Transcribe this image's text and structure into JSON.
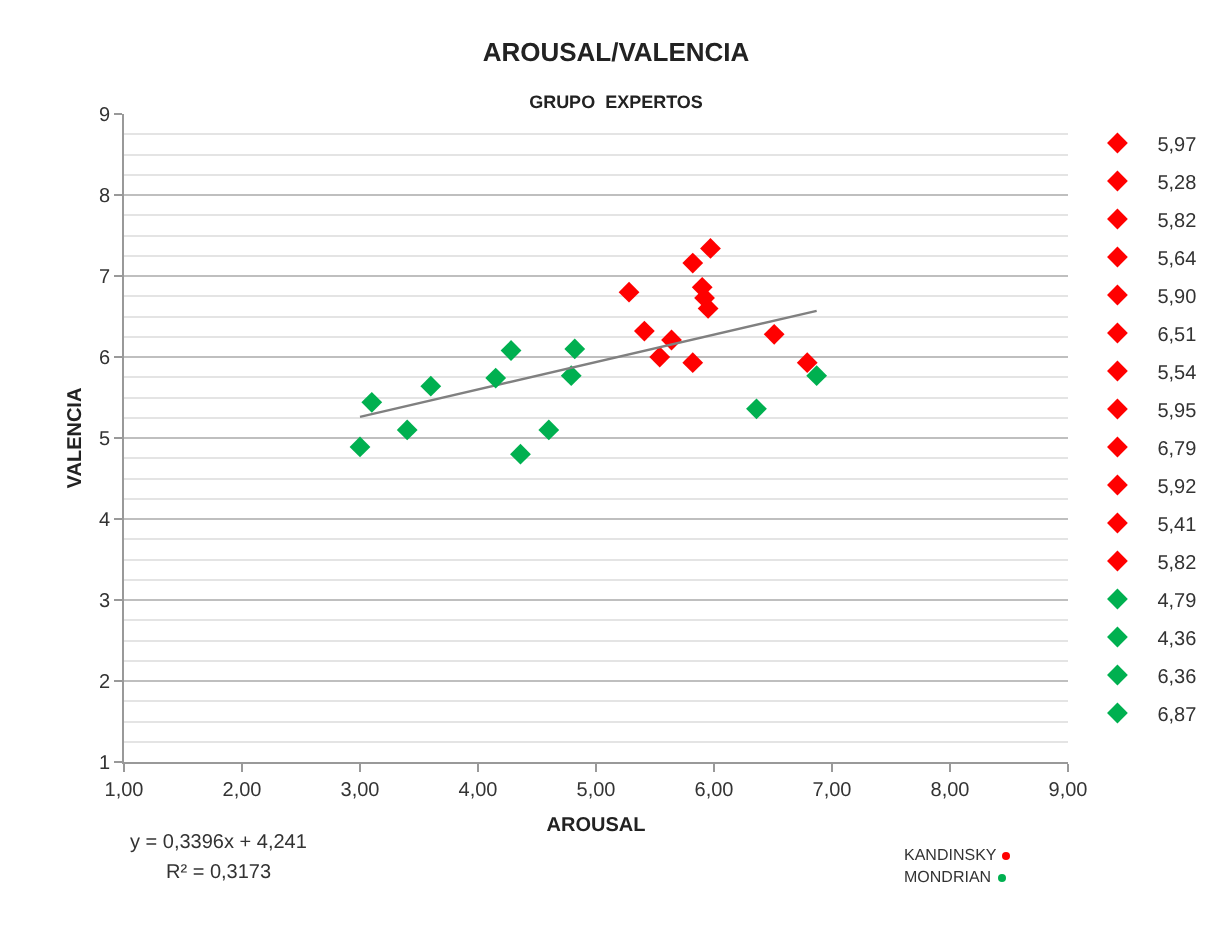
{
  "chart_data": {
    "type": "scatter",
    "title": "AROUSAL/VALENCIA",
    "subtitle": "GRUPO  EXPERTOS",
    "xlabel": "AROUSAL",
    "ylabel": "VALENCIA",
    "xlim": [
      1,
      9
    ],
    "xticks": [
      {
        "value": 1,
        "label": "1,00"
      },
      {
        "value": 2,
        "label": "2,00"
      },
      {
        "value": 3,
        "label": "3,00"
      },
      {
        "value": 4,
        "label": "4,00"
      },
      {
        "value": 5,
        "label": "5,00"
      },
      {
        "value": 6,
        "label": "6,00"
      },
      {
        "value": 7,
        "label": "7,00"
      },
      {
        "value": 8,
        "label": "8,00"
      },
      {
        "value": 9,
        "label": "9,00"
      }
    ],
    "ylim": [
      1,
      9
    ],
    "yticks": [
      1,
      2,
      3,
      4,
      5,
      6,
      7,
      8,
      9
    ],
    "grid": "y",
    "legend": "right",
    "marker": "diamond",
    "annotations": [
      "y = 0,3396x + 4,241",
      "R² = 0,3173",
      "KANDINSKY",
      "MONDRIAN"
    ],
    "series": [
      {
        "name": "5,97",
        "color": "#ff0000",
        "x": [
          5.97
        ],
        "values": [
          7.34
        ]
      },
      {
        "name": "5,28",
        "color": "#ff0000",
        "x": [
          5.28
        ],
        "values": [
          6.8
        ]
      },
      {
        "name": "5,82",
        "color": "#ff0000",
        "x": [
          5.82
        ],
        "values": [
          7.16
        ]
      },
      {
        "name": "5,64",
        "color": "#ff0000",
        "x": [
          5.64
        ],
        "values": [
          6.21
        ]
      },
      {
        "name": "5,90",
        "color": "#ff0000",
        "x": [
          5.9
        ],
        "values": [
          6.86
        ]
      },
      {
        "name": "6,51",
        "color": "#ff0000",
        "x": [
          6.51
        ],
        "values": [
          6.28
        ]
      },
      {
        "name": "5,54",
        "color": "#ff0000",
        "x": [
          5.54
        ],
        "values": [
          6.0
        ]
      },
      {
        "name": "5,95",
        "color": "#ff0000",
        "x": [
          5.95
        ],
        "values": [
          6.6
        ]
      },
      {
        "name": "6,79",
        "color": "#ff0000",
        "x": [
          6.79
        ],
        "values": [
          5.93
        ]
      },
      {
        "name": "5,92",
        "color": "#ff0000",
        "x": [
          5.92
        ],
        "values": [
          6.73
        ]
      },
      {
        "name": "5,41",
        "color": "#ff0000",
        "x": [
          5.41
        ],
        "values": [
          6.32
        ]
      },
      {
        "name": "5,82",
        "color": "#ff0000",
        "x": [
          5.82
        ],
        "values": [
          5.93
        ]
      },
      {
        "name": "4,79",
        "color": "#00b050",
        "x": [
          4.79
        ],
        "values": [
          5.77
        ]
      },
      {
        "name": "4,36",
        "color": "#00b050",
        "x": [
          4.36
        ],
        "values": [
          4.8
        ]
      },
      {
        "name": "6,36",
        "color": "#00b050",
        "x": [
          6.36
        ],
        "values": [
          5.36
        ]
      },
      {
        "name": "6,87",
        "color": "#00b050",
        "x": [
          6.87
        ],
        "values": [
          5.77
        ]
      },
      {
        "type": "line",
        "marker": "none",
        "color": "#808080",
        "x": [
          3.0,
          6.87
        ],
        "values": [
          5.26,
          6.57
        ]
      },
      {
        "color": "#00b050",
        "x": [
          3.0,
          3.1,
          3.4,
          3.6,
          4.15,
          4.28,
          4.6,
          4.82
        ],
        "values": [
          4.89,
          5.44,
          5.1,
          5.64,
          5.74,
          6.08,
          5.1,
          6.1
        ]
      }
    ]
  }
}
